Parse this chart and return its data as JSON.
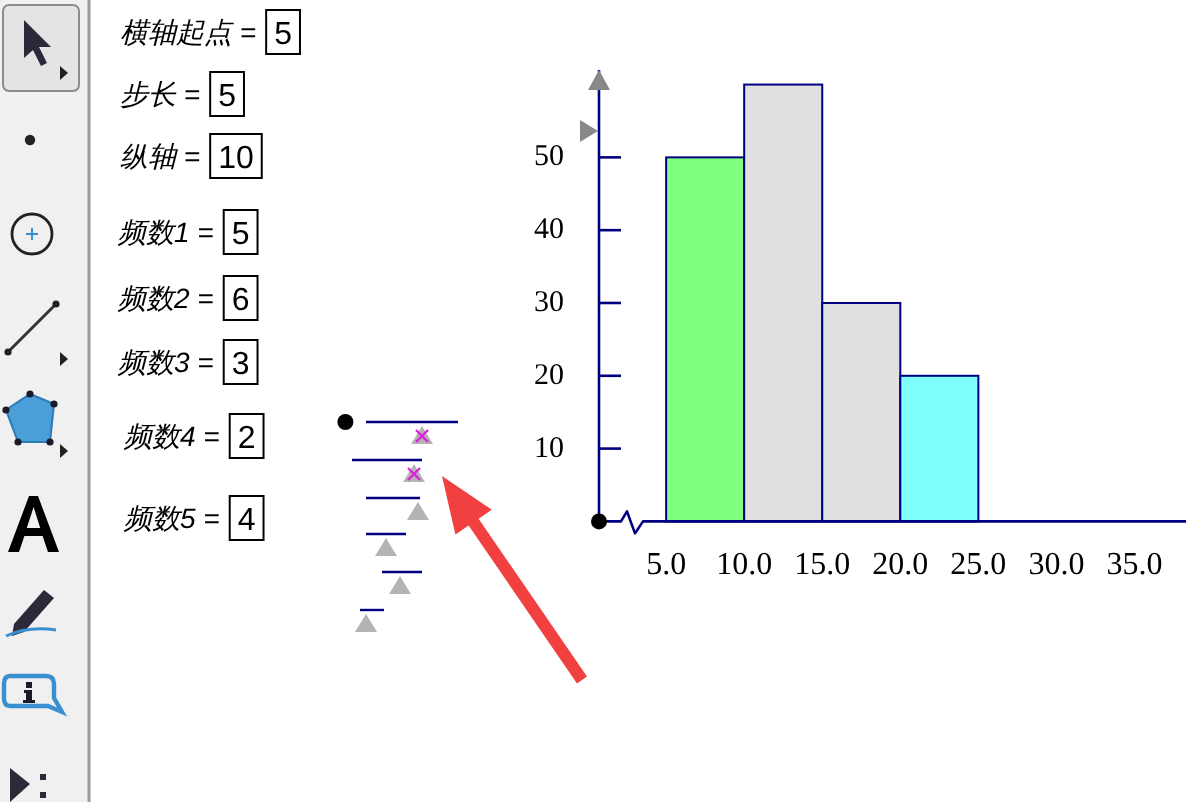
{
  "chart_data": {
    "type": "histogram",
    "bins": [
      5,
      10,
      15,
      20,
      25
    ],
    "values": [
      50,
      60,
      30,
      20
    ],
    "colors": [
      "#80ff80",
      "#e0e0e0",
      "#e0e0e0",
      "#80ffff"
    ],
    "xlim": [
      0.7,
      38.3
    ],
    "ylim": [
      0,
      62
    ],
    "xticks": [
      {
        "value": 5,
        "label": "5.0"
      },
      {
        "value": 10,
        "label": "10.0"
      },
      {
        "value": 15,
        "label": "15.0"
      },
      {
        "value": 20,
        "label": "20.0"
      },
      {
        "value": 25,
        "label": "25.0"
      },
      {
        "value": 30,
        "label": "30.0"
      },
      {
        "value": 35,
        "label": "35.0"
      }
    ],
    "yticks": [
      10,
      20,
      30,
      40,
      50
    ],
    "annotations": [
      "横轴起点 =",
      "5",
      "步长 =",
      "5",
      "纵轴 =",
      "10",
      "频数1 =",
      "5",
      "频数2 =",
      "6",
      "频数3 =",
      "3",
      "频数4 =",
      "2",
      "频数5 =",
      "4"
    ]
  }
}
